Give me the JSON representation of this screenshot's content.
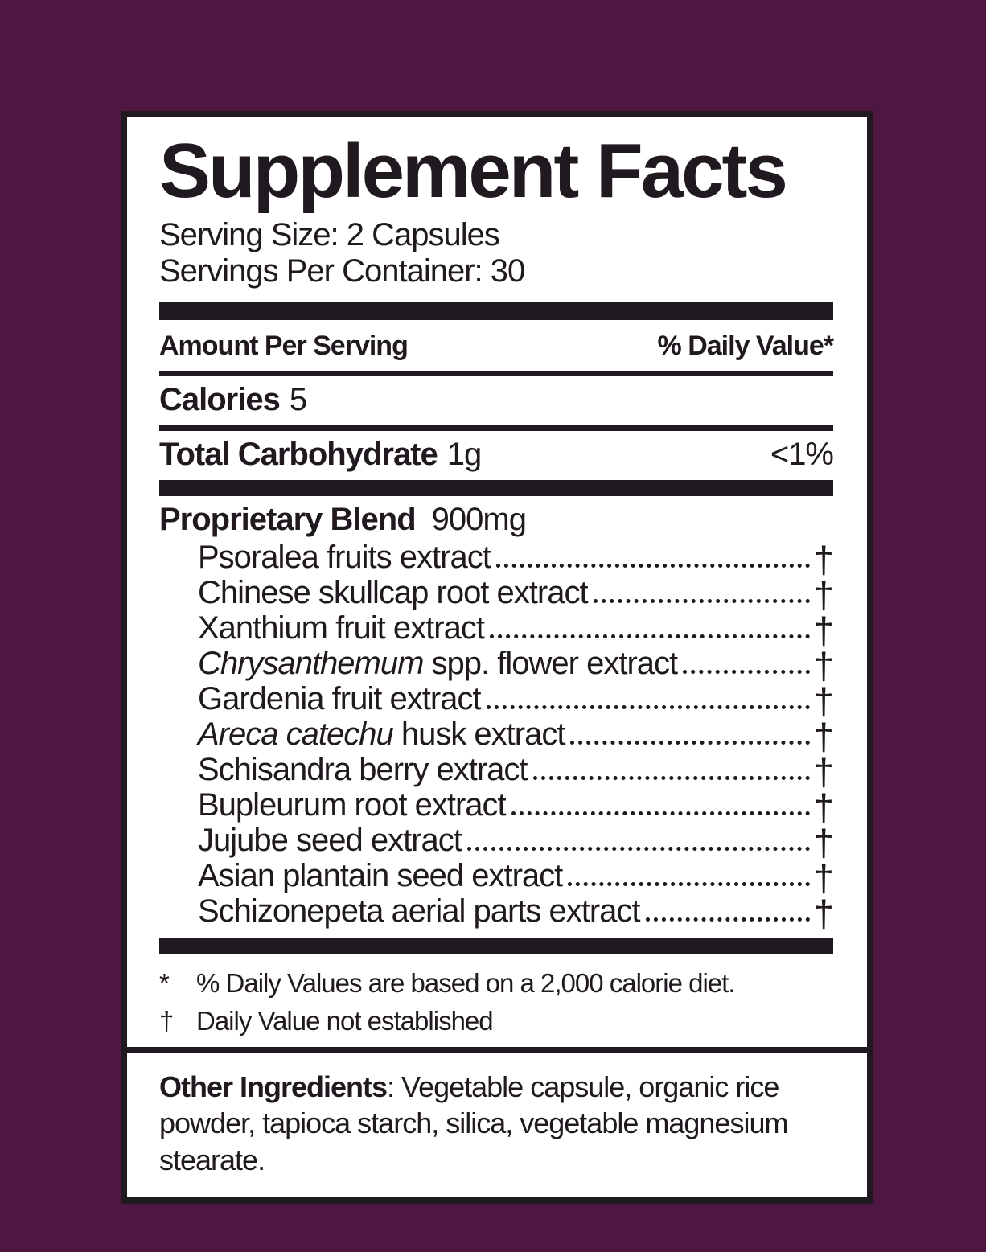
{
  "colors": {
    "background": "#4e1741",
    "ink": "#201a20",
    "panel_background": "#ffffff"
  },
  "label": {
    "title": "Supplement Facts",
    "serving_size": "Serving Size: 2 Capsules",
    "servings_per_container": "Servings Per Container: 30",
    "header": {
      "amount": "Amount Per Serving",
      "daily_value": "% Daily Value*"
    },
    "rows": [
      {
        "bold": "Calories",
        "rest": "5",
        "value": ""
      },
      {
        "bold": "Total Carbohydrate",
        "rest": "1g",
        "value": "<1%"
      }
    ],
    "blend": {
      "name": "Proprietary Blend",
      "amount": "900mg",
      "items": [
        {
          "italic": "",
          "text": "Psoralea fruits extract",
          "dv": "†"
        },
        {
          "italic": "",
          "text": "Chinese skullcap root extract",
          "dv": "†"
        },
        {
          "italic": "",
          "text": "Xanthium fruit extract",
          "dv": "†"
        },
        {
          "italic": "Chrysanthemum",
          "text": " spp. flower extract",
          "dv": "†"
        },
        {
          "italic": "",
          "text": "Gardenia fruit extract",
          "dv": "†"
        },
        {
          "italic": "Areca catechu",
          "text": " husk extract",
          "dv": "†"
        },
        {
          "italic": "",
          "text": "Schisandra berry extract",
          "dv": "†"
        },
        {
          "italic": "",
          "text": "Bupleurum root extract",
          "dv": "†"
        },
        {
          "italic": "",
          "text": "Jujube seed extract",
          "dv": "†"
        },
        {
          "italic": "",
          "text": "Asian plantain seed extract",
          "dv": "†"
        },
        {
          "italic": "",
          "text": "Schizonepeta aerial parts extract",
          "dv": "†"
        }
      ]
    },
    "footnotes": [
      {
        "symbol": "*",
        "text": "% Daily Values are based on a 2,000 calorie diet."
      },
      {
        "symbol": "†",
        "text": "Daily Value not established"
      }
    ],
    "other_ingredients": {
      "label": "Other Ingredients",
      "text": ": Vegetable capsule, organic rice powder, tapioca starch, silica, vegetable magnesium stearate."
    }
  }
}
